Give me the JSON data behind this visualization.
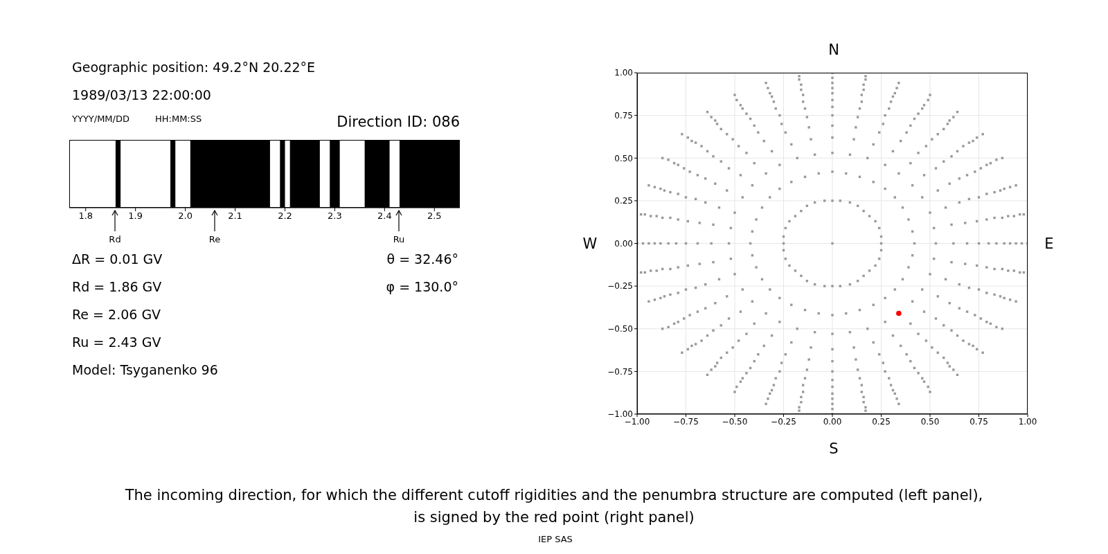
{
  "chart_data": [
    {
      "type": "bar",
      "orientation": "horizontal",
      "categories": [
        null
      ],
      "series": [
        {
          "color": "#000000",
          "base": [
            1.86
          ],
          "values": [
            0.01
          ]
        },
        {
          "color": "#000000",
          "base": [
            1.97
          ],
          "values": [
            0.01
          ]
        },
        {
          "color": "#000000",
          "base": [
            2.01
          ],
          "values": [
            0.16
          ]
        },
        {
          "color": "#000000",
          "base": [
            2.19
          ],
          "values": [
            0.01
          ]
        },
        {
          "color": "#000000",
          "base": [
            2.21
          ],
          "values": [
            0.06
          ]
        },
        {
          "color": "#000000",
          "base": [
            2.29
          ],
          "values": [
            0.02
          ]
        },
        {
          "color": "#000000",
          "base": [
            2.36
          ],
          "values": [
            0.05
          ]
        },
        {
          "color": "#000000",
          "base": [
            2.43
          ],
          "values": [
            0.12
          ]
        }
      ],
      "xlim": [
        1.767,
        2.551
      ],
      "xticks": [
        {
          "value": 1.8,
          "label": "1.8"
        },
        {
          "value": 1.9,
          "label": "1.9"
        },
        {
          "value": 2.0,
          "label": "2.0"
        },
        {
          "value": 2.1,
          "label": "2.1"
        },
        {
          "value": 2.2,
          "label": "2.2"
        },
        {
          "value": 2.3,
          "label": "2.3"
        },
        {
          "value": 2.4,
          "label": "2.4"
        },
        {
          "value": 2.5,
          "label": "2.5"
        }
      ],
      "annotations": [
        "Geographic position: 49.2°N 20.22°E",
        "1989/03/13 22:00:00",
        "YYYY/MM/DD",
        "HH:MM:SS",
        "Direction ID: 086",
        "Rd",
        "Re",
        "Ru",
        "ΔR = 0.01 GV",
        "Rd = 1.86 GV",
        "Re = 2.06 GV",
        "Ru = 2.43 GV",
        "Model: Tsyganenko 96",
        "θ = 32.46°",
        "φ = 130.0°"
      ]
    },
    {
      "type": "scatter",
      "marker": "circle",
      "grid": true,
      "xlim": [
        -1,
        1
      ],
      "ylim": [
        -1,
        1
      ],
      "xticks": [
        {
          "value": -1,
          "label": "−1.00"
        },
        {
          "value": -0.75,
          "label": "−0.75"
        },
        {
          "value": -0.5,
          "label": "−0.50"
        },
        {
          "value": -0.25,
          "label": "−0.25"
        },
        {
          "value": 0,
          "label": "0.00"
        },
        {
          "value": 0.25,
          "label": "0.25"
        },
        {
          "value": 0.5,
          "label": "0.50"
        },
        {
          "value": 0.75,
          "label": "0.75"
        },
        {
          "value": 1,
          "label": "1.00"
        }
      ],
      "yticks": [
        {
          "value": -1,
          "label": "−1.00"
        },
        {
          "value": -0.75,
          "label": "−0.75"
        },
        {
          "value": -0.5,
          "label": "−0.50"
        },
        {
          "value": -0.25,
          "label": "−0.25"
        },
        {
          "value": 0,
          "label": "0.00"
        },
        {
          "value": 0.25,
          "label": "0.25"
        },
        {
          "value": 0.5,
          "label": "0.50"
        },
        {
          "value": 0.75,
          "label": "0.75"
        },
        {
          "value": 1,
          "label": "1.00"
        }
      ],
      "series": [
        {
          "color": "#999999",
          "marker": "square",
          "x": [
            0,
            0.04,
            0.09,
            0.13,
            0.16,
            0.19,
            0.22,
            0.24,
            0.25,
            0.25,
            0.25,
            0.24,
            0.22,
            0.19,
            0.16,
            0.13,
            0.09,
            0.04,
            0,
            -0.04,
            -0.09,
            -0.13,
            -0.16,
            -0.19,
            -0.22,
            -0.24,
            -0.25,
            -0.25,
            -0.25,
            -0.24,
            -0.22,
            -0.19,
            -0.16,
            -0.13,
            -0.09,
            -0.04,
            0
          ],
          "values": [
            0.25,
            0.25,
            0.24,
            0.22,
            0.19,
            0.16,
            0.13,
            0.09,
            0.04,
            0,
            -0.04,
            -0.09,
            -0.13,
            -0.16,
            -0.19,
            -0.22,
            -0.24,
            -0.25,
            -0.25,
            -0.25,
            -0.24,
            -0.22,
            -0.19,
            -0.16,
            -0.13,
            -0.09,
            -0.04,
            0,
            0.04,
            0.09,
            0.13,
            0.16,
            0.19,
            0.22,
            0.24,
            0.25,
            0
          ]
        },
        {
          "color": "#999999",
          "marker": "square",
          "x": [
            0,
            0.07,
            0.14,
            0.21,
            0.27,
            0.32,
            0.36,
            0.39,
            0.41,
            0.42,
            0.41,
            0.39,
            0.36,
            0.32,
            0.27,
            0.21,
            0.14,
            0.07,
            0,
            -0.07,
            -0.14,
            -0.21,
            -0.27,
            -0.32,
            -0.36,
            -0.39,
            -0.41,
            -0.42,
            -0.41,
            -0.39,
            -0.36,
            -0.32,
            -0.27,
            -0.21,
            -0.14,
            -0.07
          ],
          "values": [
            0.42,
            0.41,
            0.39,
            0.36,
            0.32,
            0.27,
            0.21,
            0.14,
            0.07,
            0,
            -0.07,
            -0.14,
            -0.21,
            -0.27,
            -0.32,
            -0.36,
            -0.39,
            -0.41,
            -0.42,
            -0.41,
            -0.39,
            -0.36,
            -0.32,
            -0.27,
            -0.21,
            -0.14,
            -0.07,
            0,
            0.07,
            0.14,
            0.21,
            0.27,
            0.32,
            0.36,
            0.39,
            0.41
          ]
        },
        {
          "color": "#999999",
          "marker": "square",
          "x": [
            0,
            0.09,
            0.18,
            0.27,
            0.34,
            0.41,
            0.46,
            0.5,
            0.52,
            0.53,
            0.52,
            0.5,
            0.46,
            0.41,
            0.34,
            0.27,
            0.18,
            0.09,
            0,
            -0.09,
            -0.18,
            -0.27,
            -0.34,
            -0.41,
            -0.46,
            -0.5,
            -0.52,
            -0.53,
            -0.52,
            -0.5,
            -0.46,
            -0.41,
            -0.34,
            -0.27,
            -0.18,
            -0.09
          ],
          "values": [
            0.53,
            0.52,
            0.5,
            0.46,
            0.41,
            0.34,
            0.27,
            0.18,
            0.09,
            0,
            -0.09,
            -0.18,
            -0.27,
            -0.34,
            null,
            -0.46,
            -0.5,
            -0.52,
            -0.53,
            -0.52,
            -0.5,
            -0.46,
            -0.41,
            -0.34,
            -0.27,
            -0.18,
            -0.09,
            0,
            0.09,
            0.18,
            0.27,
            0.34,
            0.41,
            0.46,
            0.5,
            0.52
          ]
        },
        {
          "color": "#999999",
          "marker": "square",
          "x": [
            0,
            0.11,
            0.21,
            0.31,
            0.4,
            0.47,
            0.54,
            0.58,
            0.61,
            0.62,
            0.61,
            0.58,
            0.54,
            0.47,
            0.4,
            0.31,
            0.21,
            0.11,
            0,
            -0.11,
            -0.21,
            -0.31,
            -0.4,
            -0.47,
            -0.54,
            -0.58,
            -0.61,
            -0.62,
            -0.61,
            -0.58,
            -0.54,
            -0.47,
            -0.4,
            -0.31,
            -0.21,
            -0.11
          ],
          "values": [
            0.62,
            0.61,
            0.58,
            0.54,
            0.47,
            0.4,
            0.31,
            0.21,
            0.11,
            0,
            -0.11,
            -0.21,
            -0.31,
            -0.4,
            -0.47,
            -0.54,
            -0.58,
            -0.61,
            -0.62,
            -0.61,
            -0.58,
            -0.54,
            -0.47,
            -0.4,
            -0.31,
            -0.21,
            -0.11,
            0,
            0.11,
            0.21,
            0.31,
            0.4,
            0.47,
            0.54,
            0.58,
            0.61
          ]
        },
        {
          "color": "#999999",
          "marker": "square",
          "x": [
            0,
            0.12,
            0.24,
            0.35,
            0.44,
            0.53,
            0.6,
            0.65,
            0.68,
            0.69,
            0.68,
            0.65,
            0.6,
            0.53,
            0.44,
            0.35,
            0.24,
            0.12,
            0,
            -0.12,
            -0.24,
            -0.35,
            -0.44,
            -0.53,
            -0.6,
            -0.65,
            -0.68,
            -0.69,
            -0.68,
            -0.65,
            -0.6,
            -0.53,
            -0.44,
            -0.35,
            -0.24,
            -0.12
          ],
          "values": [
            0.69,
            0.68,
            0.65,
            0.6,
            0.53,
            0.44,
            0.35,
            0.24,
            0.12,
            0,
            -0.12,
            -0.24,
            -0.35,
            -0.44,
            -0.53,
            -0.6,
            -0.65,
            -0.68,
            -0.69,
            -0.68,
            -0.65,
            -0.6,
            -0.53,
            -0.44,
            -0.35,
            -0.24,
            -0.12,
            0,
            0.12,
            0.24,
            0.35,
            0.44,
            0.53,
            0.6,
            0.65,
            0.68
          ]
        },
        {
          "color": "#999999",
          "marker": "square",
          "x": [
            0,
            0.13,
            0.26,
            0.38,
            0.48,
            0.57,
            0.65,
            0.7,
            0.74,
            0.75,
            0.74,
            0.7,
            0.65,
            0.57,
            0.48,
            0.38,
            0.26,
            0.13,
            0,
            -0.13,
            -0.26,
            -0.38,
            -0.48,
            -0.57,
            -0.65,
            -0.7,
            -0.74,
            -0.75,
            -0.74,
            -0.7,
            -0.65,
            -0.57,
            -0.48,
            -0.38,
            -0.26,
            -0.13
          ],
          "values": [
            0.75,
            0.74,
            0.7,
            0.65,
            0.57,
            0.48,
            0.38,
            0.26,
            0.13,
            0,
            -0.13,
            -0.26,
            -0.38,
            -0.48,
            -0.57,
            -0.65,
            -0.7,
            -0.74,
            -0.75,
            -0.74,
            -0.7,
            -0.65,
            -0.57,
            -0.48,
            -0.38,
            -0.26,
            -0.13,
            0,
            0.13,
            0.26,
            0.38,
            0.48,
            0.57,
            0.65,
            0.7,
            0.74
          ]
        },
        {
          "color": "#999999",
          "marker": "square",
          "x": [
            0,
            0.14,
            0.27,
            0.4,
            0.51,
            0.61,
            0.69,
            0.75,
            0.79,
            0.8,
            0.79,
            0.75,
            0.69,
            0.61,
            0.51,
            0.4,
            0.27,
            0.14,
            0,
            -0.14,
            -0.27,
            -0.4,
            -0.51,
            -0.61,
            -0.69,
            -0.75,
            -0.79,
            -0.8,
            -0.79,
            -0.75,
            -0.69,
            -0.61,
            -0.51,
            -0.4,
            -0.27,
            -0.14
          ],
          "values": [
            0.8,
            0.79,
            0.75,
            0.69,
            0.61,
            0.51,
            0.4,
            0.27,
            0.14,
            0,
            -0.14,
            -0.27,
            -0.4,
            -0.51,
            -0.61,
            -0.69,
            -0.75,
            -0.79,
            -0.8,
            -0.79,
            -0.75,
            -0.69,
            -0.61,
            -0.51,
            -0.4,
            -0.27,
            -0.14,
            0,
            0.14,
            0.27,
            0.4,
            0.51,
            0.61,
            0.69,
            0.75,
            0.79
          ]
        },
        {
          "color": "#999999",
          "marker": "square",
          "x": [
            0,
            0.15,
            0.29,
            0.42,
            0.54,
            0.64,
            0.73,
            0.79,
            0.83,
            0.84,
            0.83,
            0.79,
            0.73,
            0.64,
            0.54,
            0.42,
            0.29,
            0.15,
            0,
            -0.15,
            -0.29,
            -0.42,
            -0.54,
            -0.64,
            -0.73,
            -0.79,
            -0.83,
            -0.84,
            -0.83,
            -0.79,
            -0.73,
            -0.64,
            -0.54,
            -0.42,
            -0.29,
            -0.15
          ],
          "values": [
            0.84,
            0.83,
            0.79,
            0.73,
            0.64,
            0.54,
            0.42,
            0.29,
            0.15,
            0,
            -0.15,
            -0.29,
            -0.42,
            -0.54,
            -0.64,
            -0.73,
            -0.79,
            -0.83,
            -0.84,
            -0.83,
            -0.79,
            -0.73,
            -0.64,
            -0.54,
            -0.42,
            -0.29,
            -0.15,
            0,
            0.15,
            0.29,
            0.42,
            0.54,
            0.64,
            0.73,
            0.79,
            0.83
          ]
        },
        {
          "color": "#999999",
          "marker": "square",
          "x": [
            0,
            0.15,
            0.3,
            0.44,
            0.57,
            0.67,
            0.76,
            0.83,
            0.87,
            0.88,
            0.87,
            0.83,
            0.76,
            0.67,
            0.57,
            0.44,
            0.3,
            0.15,
            0,
            -0.15,
            -0.3,
            -0.44,
            -0.57,
            -0.67,
            -0.76,
            -0.83,
            -0.87,
            -0.88,
            -0.87,
            -0.83,
            -0.76,
            -0.67,
            -0.57,
            -0.44,
            -0.3,
            -0.15
          ],
          "values": [
            0.88,
            0.87,
            0.83,
            0.76,
            0.67,
            0.57,
            0.44,
            0.3,
            0.15,
            0,
            -0.15,
            -0.3,
            -0.44,
            -0.57,
            -0.67,
            -0.76,
            -0.83,
            -0.87,
            -0.88,
            -0.87,
            -0.83,
            -0.76,
            -0.67,
            -0.57,
            -0.44,
            -0.3,
            -0.15,
            0,
            0.15,
            0.3,
            0.44,
            0.57,
            0.67,
            0.76,
            0.83,
            0.87
          ]
        },
        {
          "color": "#999999",
          "marker": "square",
          "x": [
            0,
            0.16,
            0.31,
            0.46,
            0.59,
            0.7,
            0.79,
            0.86,
            0.9,
            0.91,
            0.9,
            0.86,
            0.79,
            0.7,
            0.59,
            0.46,
            0.31,
            0.16,
            0,
            -0.16,
            -0.31,
            -0.46,
            -0.59,
            -0.7,
            -0.79,
            -0.86,
            -0.9,
            -0.91,
            -0.9,
            -0.86,
            -0.79,
            -0.7,
            -0.59,
            -0.46,
            -0.31,
            -0.16
          ],
          "values": [
            0.91,
            0.9,
            0.86,
            0.79,
            0.7,
            0.59,
            0.46,
            0.31,
            0.16,
            0,
            -0.16,
            -0.31,
            -0.46,
            -0.59,
            -0.7,
            -0.79,
            -0.86,
            -0.9,
            -0.91,
            -0.9,
            -0.86,
            -0.79,
            -0.7,
            -0.59,
            -0.46,
            -0.31,
            -0.16,
            0,
            0.16,
            0.31,
            0.46,
            0.59,
            0.7,
            0.79,
            0.86,
            0.9
          ]
        },
        {
          "color": "#999999",
          "marker": "square",
          "x": [
            0,
            0.16,
            0.32,
            0.47,
            0.6,
            0.72,
            0.81,
            0.88,
            0.93,
            0.94,
            0.93,
            0.88,
            0.81,
            0.72,
            0.6,
            0.47,
            0.32,
            0.16,
            0,
            -0.16,
            -0.32,
            -0.47,
            -0.6,
            -0.72,
            -0.81,
            -0.88,
            -0.93,
            -0.94,
            -0.93,
            -0.88,
            -0.81,
            -0.72,
            -0.6,
            -0.47,
            -0.32,
            -0.16
          ],
          "values": [
            0.94,
            0.93,
            0.88,
            0.81,
            0.72,
            0.6,
            0.47,
            0.32,
            0.16,
            0,
            -0.16,
            -0.32,
            -0.47,
            -0.6,
            -0.72,
            -0.81,
            -0.88,
            -0.93,
            -0.94,
            -0.93,
            -0.88,
            -0.81,
            -0.72,
            -0.6,
            -0.47,
            -0.32,
            -0.16,
            0,
            0.16,
            0.32,
            0.47,
            0.6,
            0.72,
            0.81,
            0.88,
            0.93
          ]
        },
        {
          "color": "#999999",
          "marker": "square",
          "x": [
            0,
            0.17,
            0.33,
            0.49,
            0.62,
            0.74,
            0.84,
            0.91,
            0.96,
            0.97,
            0.96,
            0.91,
            0.84,
            0.74,
            0.62,
            0.49,
            0.33,
            0.17,
            0,
            -0.17,
            -0.33,
            -0.49,
            -0.62,
            -0.74,
            -0.84,
            -0.91,
            -0.96,
            -0.97,
            -0.96,
            -0.91,
            -0.84,
            -0.74,
            -0.62,
            -0.49,
            -0.33,
            -0.17
          ],
          "values": [
            0.97,
            0.96,
            0.91,
            0.84,
            0.74,
            0.62,
            0.49,
            0.33,
            0.17,
            0,
            -0.17,
            -0.33,
            -0.49,
            -0.62,
            -0.74,
            -0.84,
            -0.91,
            -0.96,
            -0.97,
            -0.96,
            -0.91,
            -0.84,
            -0.74,
            -0.62,
            -0.49,
            -0.33,
            -0.17,
            0,
            0.17,
            0.33,
            0.49,
            0.62,
            0.74,
            0.84,
            0.91,
            0.96
          ]
        },
        {
          "color": "#999999",
          "marker": "square",
          "x": [
            0,
            0.17,
            0.34,
            0.5,
            0.64,
            0.77,
            0.87,
            0.94,
            0.98,
            1,
            0.98,
            0.94,
            0.87,
            0.77,
            0.64,
            0.5,
            0.34,
            0.17,
            0,
            -0.17,
            -0.34,
            -0.5,
            -0.64,
            -0.77,
            -0.87,
            -0.94,
            -0.98,
            -1,
            -0.98,
            -0.94,
            -0.87,
            -0.77,
            -0.64,
            -0.5,
            -0.34,
            -0.17
          ],
          "values": [
            1,
            0.98,
            0.94,
            0.87,
            0.77,
            0.64,
            0.5,
            0.34,
            0.17,
            0,
            -0.17,
            -0.34,
            -0.5,
            -0.64,
            -0.77,
            -0.87,
            -0.94,
            -0.98,
            -1,
            -0.98,
            -0.94,
            -0.87,
            -0.77,
            -0.64,
            -0.5,
            -0.34,
            -0.17,
            0,
            0.17,
            0.34,
            0.5,
            0.64,
            0.77,
            0.87,
            0.94,
            0.98
          ]
        },
        {
          "color": "#ff0000",
          "x": [
            0.34
          ],
          "values": [
            -0.41
          ]
        }
      ],
      "annotations": [
        "N",
        "S",
        "W",
        "E",
        "The incoming direction, for which the different cutoff rigidities and the penumbra structure are computed (left panel), is signed by the red point (right panel)",
        "IEP SAS"
      ]
    }
  ]
}
